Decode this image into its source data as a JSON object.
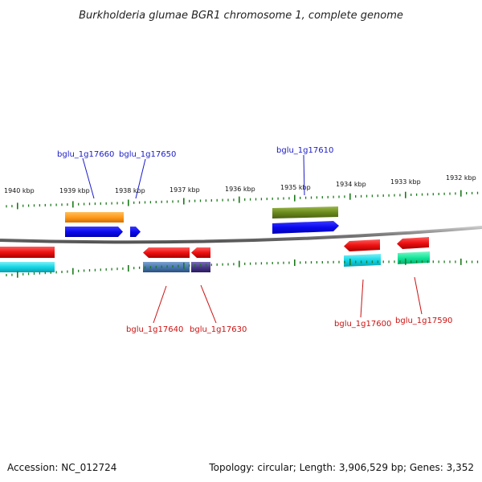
{
  "title": "Burkholderia glumae BGR1 chromosome 1, complete genome",
  "scale_labels": [
    "1940 kbp",
    "1939 kbp",
    "1938 kbp",
    "1937 kbp",
    "1936 kbp",
    "1935 kbp",
    "1934 kbp",
    "1933 kbp",
    "1932 kbp"
  ],
  "gene_labels": {
    "g17660": "bglu_1g17660",
    "g17650": "bglu_1g17650",
    "g17610": "bglu_1g17610",
    "g17640": "bglu_1g17640",
    "g17630": "bglu_1g17630",
    "g17600": "bglu_1g17600",
    "g17590": "bglu_1g17590"
  },
  "footer": {
    "accession": "Accession: NC_012724",
    "summary": "Topology: circular; Length: 3,906,529 bp; Genes: 3,352"
  },
  "colors": {
    "forward_label": "#1a1acc",
    "reverse_label": "#cc1111",
    "tick": "#1a7a1a",
    "backbone": "#8a8a8a",
    "forward_gene": "#0a0af0",
    "reverse_gene": "#ee1111",
    "orange_feature": "#ff9a1a",
    "olive_feature": "#6b8a1e",
    "cyan_feature": "#11d6e6",
    "steel_feature": "#4a78b0",
    "purple_feature": "#4a3a8a",
    "green_feature": "#11e69a"
  }
}
